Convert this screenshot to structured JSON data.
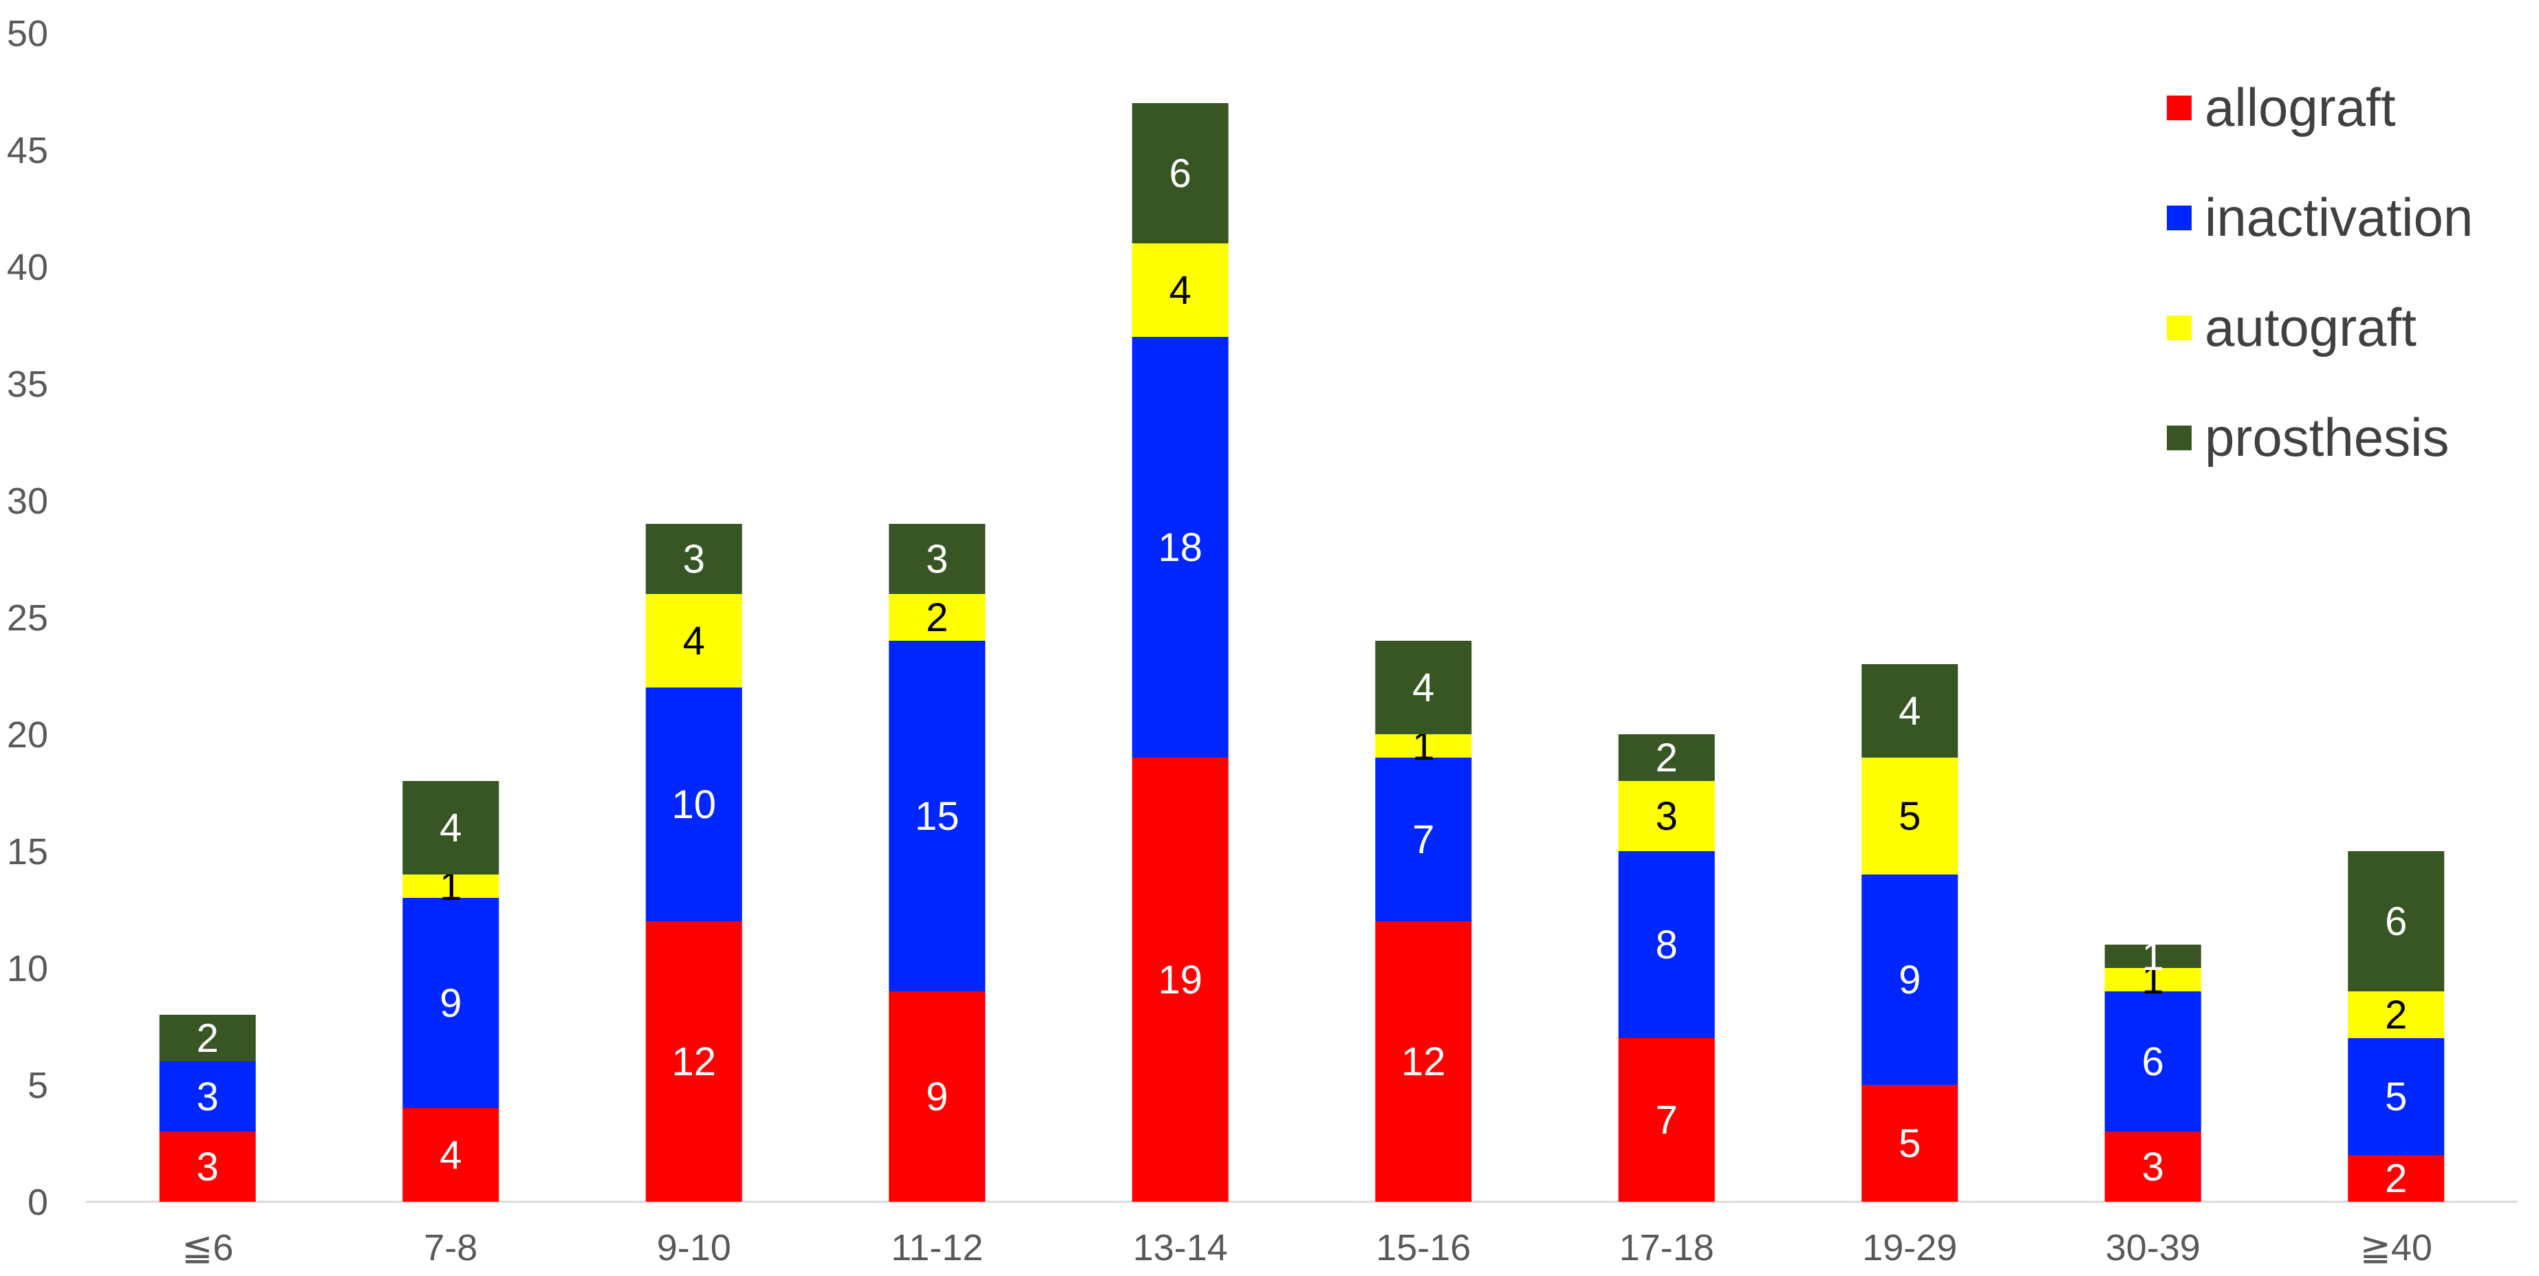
{
  "chart_data": {
    "type": "bar",
    "stacked": true,
    "title": "",
    "xlabel": "",
    "ylabel": "",
    "ylim": [
      0,
      50
    ],
    "ytick_step": 5,
    "grid": false,
    "legend_position": "top-right",
    "categories": [
      "≦6",
      "7-8",
      "9-10",
      "11-12",
      "13-14",
      "15-16",
      "17-18",
      "19-29",
      "30-39",
      "≧40"
    ],
    "series": [
      {
        "name": "allograft",
        "color": "#FF0000",
        "label_color": "#FFFFFF",
        "values": [
          3,
          4,
          12,
          9,
          19,
          12,
          7,
          5,
          3,
          2
        ]
      },
      {
        "name": "inactivation",
        "color": "#0026FF",
        "label_color": "#FFFFFF",
        "values": [
          3,
          9,
          10,
          15,
          18,
          7,
          8,
          9,
          6,
          5
        ]
      },
      {
        "name": "autograft",
        "color": "#FFFF00",
        "label_color": "#000000",
        "values": [
          0,
          1,
          4,
          2,
          4,
          1,
          3,
          5,
          1,
          2
        ]
      },
      {
        "name": "prosthesis",
        "color": "#375623",
        "label_color": "#FFFFFF",
        "values": [
          2,
          4,
          3,
          3,
          6,
          4,
          2,
          4,
          1,
          6
        ]
      }
    ]
  }
}
